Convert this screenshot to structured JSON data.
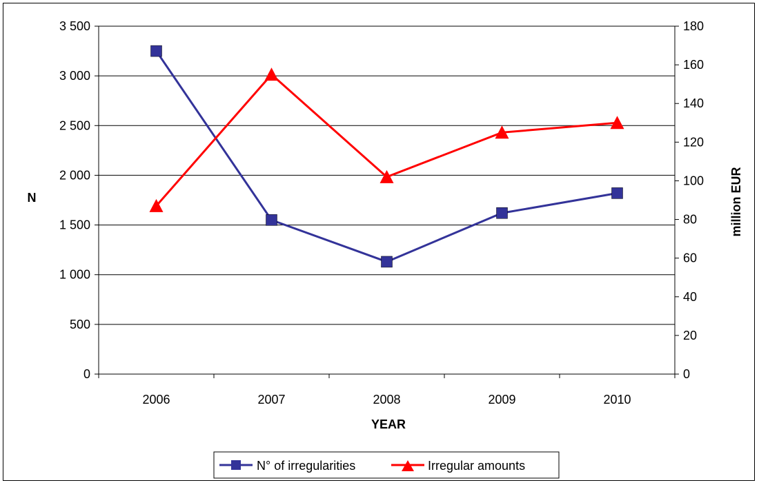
{
  "chart_data": {
    "type": "line",
    "categories": [
      "2006",
      "2007",
      "2008",
      "2009",
      "2010"
    ],
    "xlabel": "YEAR",
    "ylabel_left": "N",
    "ylabel_right": "million EUR",
    "ylim_left": [
      0,
      3500
    ],
    "ylim_right": [
      0,
      180
    ],
    "yticks_left": [
      "0",
      "500",
      "1 000",
      "1 500",
      "2 000",
      "2 500",
      "3 000",
      "3 500"
    ],
    "yticks_right": [
      "0",
      "20",
      "40",
      "60",
      "80",
      "100",
      "120",
      "140",
      "160",
      "180"
    ],
    "grid": true,
    "legend_position": "bottom",
    "series": [
      {
        "name": "N° of irregularities",
        "axis": "left",
        "color": "#333399",
        "marker": "square",
        "values": [
          3250,
          1550,
          1130,
          1620,
          1820
        ]
      },
      {
        "name": "Irregular amounts",
        "axis": "right",
        "color": "#FF0000",
        "marker": "triangle",
        "values": [
          87,
          155,
          102,
          125,
          130
        ]
      }
    ]
  }
}
